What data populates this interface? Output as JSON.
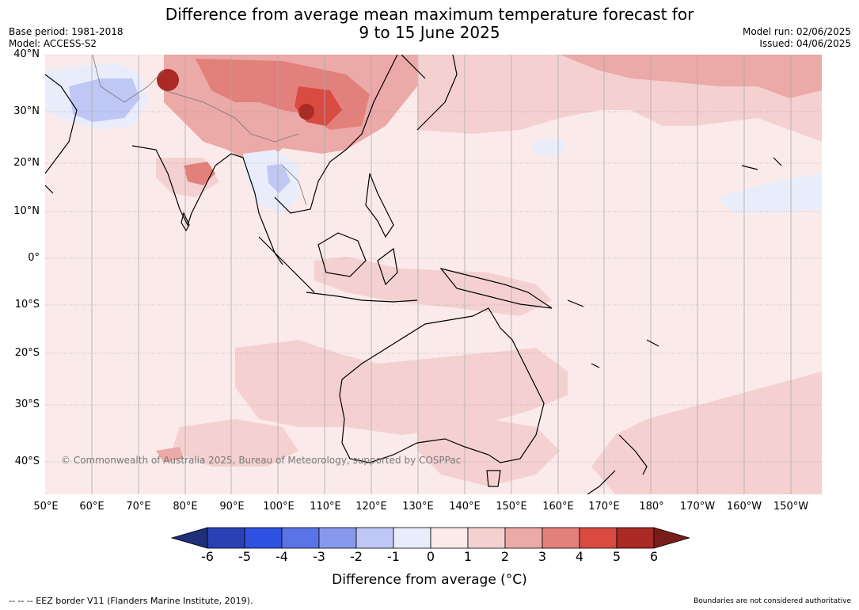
{
  "title_line1": "Difference from average mean maximum temperature forecast for",
  "title_line2": "9 to 15 June 2025",
  "base_period": "Base period: 1981-2018",
  "model": "Model: ACCESS-S2",
  "model_run": "Model run: 02/06/2025",
  "issued": "Issued: 04/06/2025",
  "lat_labels": [
    "40°N",
    "30°N",
    "20°N",
    "10°N",
    "0°",
    "10°S",
    "20°S",
    "30°S",
    "40°S"
  ],
  "lon_labels": [
    "50°E",
    "60°E",
    "70°E",
    "80°E",
    "90°E",
    "100°E",
    "110°E",
    "120°E",
    "130°E",
    "140°E",
    "150°E",
    "160°E",
    "170°E",
    "180°",
    "170°W",
    "160°W",
    "150°W"
  ],
  "copyright": "© Commonwealth of Australia 2025, Bureau of Meteorology, supported by COSPPac",
  "colorbar": {
    "ticks": [
      "-6",
      "-5",
      "-4",
      "-3",
      "-2",
      "-1",
      "0",
      "1",
      "2",
      "3",
      "4",
      "5",
      "6"
    ],
    "colors": [
      "#1f2f7a",
      "#2a40b5",
      "#2f52e2",
      "#5a73e6",
      "#8898ec",
      "#bfc7f4",
      "#e9edfb",
      "#fbeaea",
      "#f4d1d0",
      "#eba9a7",
      "#e2807c",
      "#d94a41",
      "#aa2a24",
      "#7a1d18"
    ],
    "label": "Difference from average (°C)"
  },
  "footer_left": "--  --  -- EEZ border V11 (Flanders Marine Institute, 2019).",
  "footer_right": "Boundaries are not considered authoritative"
}
